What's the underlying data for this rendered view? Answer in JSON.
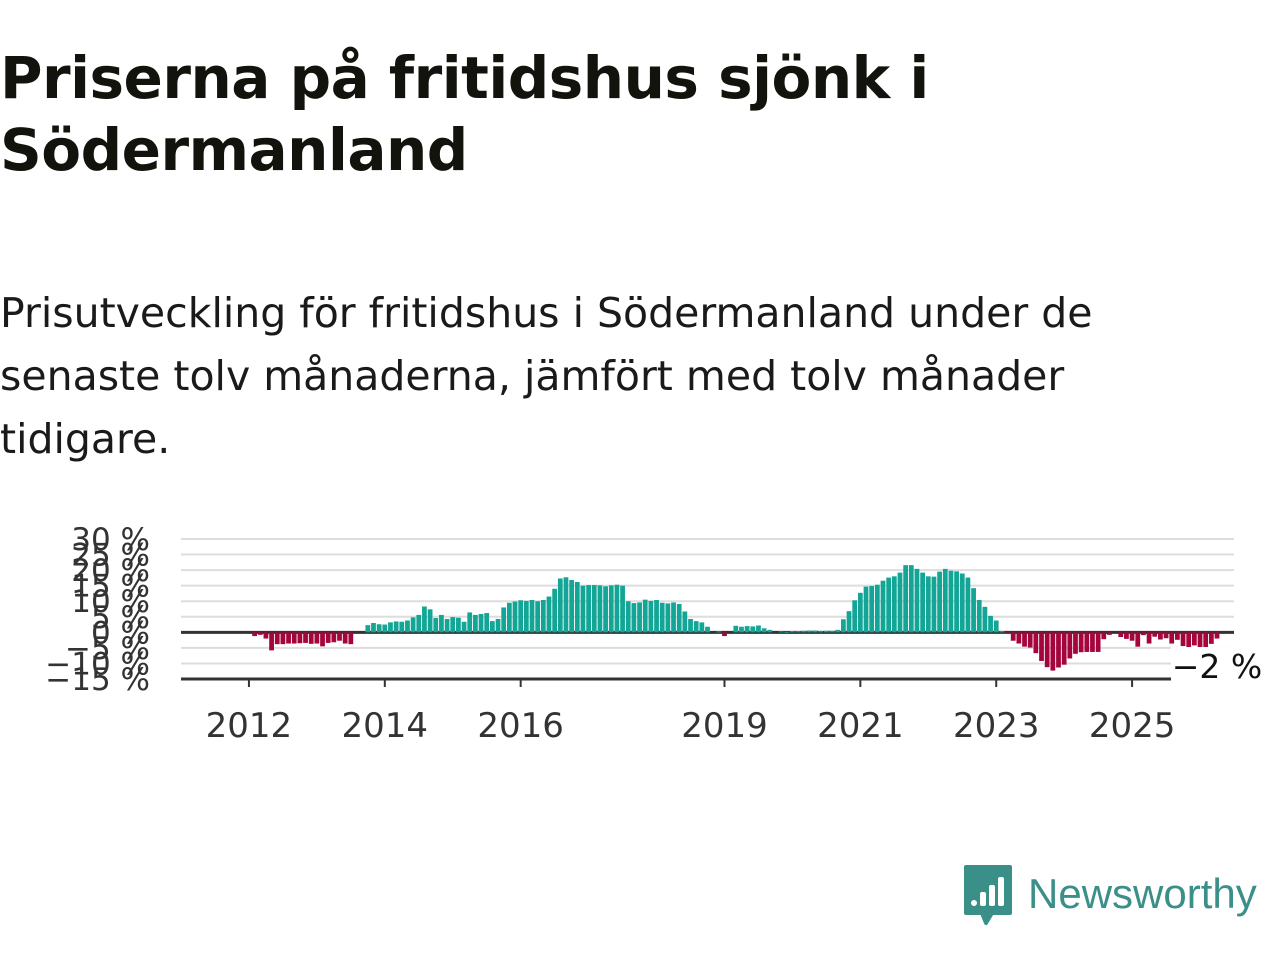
{
  "header": {
    "title": "Priserna på fritidshus sjönk i Södermanland",
    "subtitle": "Prisutveckling för fritidshus i Södermanland under de senaste tolv månaderna, jämfört med tolv månader tidigare."
  },
  "brand": {
    "name": "Newsworthy",
    "icon": "newsworthy-logo-icon",
    "color": "#3a8f88"
  },
  "chart_data": {
    "type": "bar",
    "title": "",
    "xlabel": "",
    "ylabel": "",
    "x_start": "2011-01",
    "x_end": "2026-07",
    "ylim": [
      -15,
      30
    ],
    "grid": true,
    "legend": "none",
    "y_ticks": [
      {
        "value": 30,
        "label": "30 %"
      },
      {
        "value": 25,
        "label": "25 %"
      },
      {
        "value": 20,
        "label": "20 %"
      },
      {
        "value": 15,
        "label": "15 %"
      },
      {
        "value": 10,
        "label": "10 %"
      },
      {
        "value": 5,
        "label": "5 %"
      },
      {
        "value": 0,
        "label": "0 %"
      },
      {
        "value": -5,
        "label": "−5 %"
      },
      {
        "value": -10,
        "label": "−10 %"
      },
      {
        "value": -15,
        "label": "−15 %"
      }
    ],
    "x_ticks": [
      {
        "year": 2012,
        "label": "2012"
      },
      {
        "year": 2014,
        "label": "2014"
      },
      {
        "year": 2016,
        "label": "2016"
      },
      {
        "year": 2019,
        "label": "2019"
      },
      {
        "year": 2021,
        "label": "2021"
      },
      {
        "year": 2023,
        "label": "2023"
      },
      {
        "year": 2025,
        "label": "2025"
      }
    ],
    "colors": {
      "positive": "#13a595",
      "negative": "#a3053c",
      "grid": "#dddddd",
      "zero": "#333333"
    },
    "last_value_label": "−2 %",
    "series": [
      {
        "start": "2012-01",
        "values": [
          0,
          -1.2,
          -0.8,
          -2,
          -5.8,
          -3.8,
          -3.8,
          -3.6,
          -3.6,
          -3.5,
          -3.4,
          -3.7,
          -3.6,
          -4.5,
          -3.4,
          -3.2,
          -2.7,
          -3.6,
          -3.8
        ]
      },
      {
        "start": "2013-10",
        "values": [
          2.3,
          3.0,
          2.6,
          2.5,
          3.2,
          3.5,
          3.4,
          3.8,
          4.8,
          5.6,
          8.3,
          7.4,
          4.6,
          5.6,
          4.3,
          4.9,
          4.7,
          3.4,
          6.4,
          5.6,
          5.9,
          6.2,
          3.6,
          4.3,
          8.0,
          9.5,
          9.9,
          10.3,
          10.1,
          10.4,
          10.0,
          10.4,
          11.5,
          14.0,
          17.3,
          17.7,
          16.8,
          16.2,
          15.0,
          15.2,
          15.2,
          15.1,
          14.8,
          15.1,
          15.3,
          15.0,
          10.0,
          9.4,
          9.6,
          10.5,
          10.1,
          10.4,
          9.5,
          9.3,
          9.6,
          9.1,
          6.7,
          4.3,
          3.6,
          3.2,
          1.8
        ]
      }
    ],
    "series_late": [
      {
        "start": "2018-11",
        "values": [
          0,
          0.3,
          -1.2,
          0,
          2.1,
          1.8,
          2.0,
          1.9,
          2.2,
          1.3,
          0.8,
          0,
          0.3,
          0.2,
          0.4,
          0.4,
          0.5,
          0.6,
          0.6,
          0.4,
          0.5,
          0.5,
          0.8,
          4.2,
          6.8,
          10.3,
          12.7,
          14.7,
          14.9,
          15.3,
          16.6,
          17.6,
          18.0,
          19.2,
          21.6,
          21.6,
          20.4,
          19.2,
          18.0,
          17.9,
          19.5,
          20.4,
          19.8,
          19.6,
          18.9,
          17.6,
          14.2,
          10.4,
          8.2,
          5.3,
          3.8,
          0.4,
          -0.3,
          -2.7,
          -3.6,
          -4.6,
          -4.9,
          -6.7,
          -9.2,
          -11.2,
          -12.3,
          -11.3,
          -10.4,
          -8.4,
          -6.9,
          -6.4,
          -6.3,
          -6.3,
          -6.3,
          -2.2,
          -0.8,
          0,
          -1.5,
          -2.1,
          -2.7,
          -4.6,
          -0.9,
          -3.6,
          -1.4,
          -2.3,
          -1.9,
          -3.6,
          -2.4,
          -4.4,
          -4.9,
          -4.2,
          -4.8,
          -4.9,
          -3.7,
          -2.0
        ]
      }
    ]
  }
}
